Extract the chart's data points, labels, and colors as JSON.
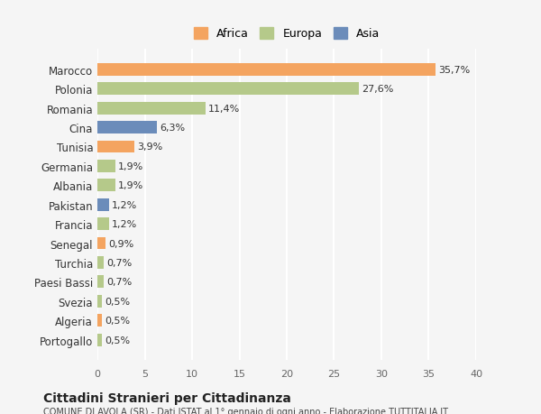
{
  "categories": [
    "Portogallo",
    "Algeria",
    "Svezia",
    "Paesi Bassi",
    "Turchia",
    "Senegal",
    "Francia",
    "Pakistan",
    "Albania",
    "Germania",
    "Tunisia",
    "Cina",
    "Romania",
    "Polonia",
    "Marocco"
  ],
  "values": [
    0.5,
    0.5,
    0.5,
    0.7,
    0.7,
    0.9,
    1.2,
    1.2,
    1.9,
    1.9,
    3.9,
    6.3,
    11.4,
    27.6,
    35.7
  ],
  "labels": [
    "0,5%",
    "0,5%",
    "0,5%",
    "0,7%",
    "0,7%",
    "0,9%",
    "1,2%",
    "1,2%",
    "1,9%",
    "1,9%",
    "3,9%",
    "6,3%",
    "11,4%",
    "27,6%",
    "35,7%"
  ],
  "colors": [
    "#b5c98a",
    "#f4a460",
    "#b5c98a",
    "#b5c98a",
    "#b5c98a",
    "#f4a460",
    "#b5c98a",
    "#6b8cba",
    "#b5c98a",
    "#b5c98a",
    "#f4a460",
    "#6b8cba",
    "#b5c98a",
    "#b5c98a",
    "#f4a460"
  ],
  "legend_labels": [
    "Africa",
    "Europa",
    "Asia"
  ],
  "legend_colors": [
    "#f4a460",
    "#b5c98a",
    "#6b8cba"
  ],
  "xlim": [
    0,
    40
  ],
  "xticks": [
    0,
    5,
    10,
    15,
    20,
    25,
    30,
    35,
    40
  ],
  "title": "Cittadini Stranieri per Cittadinanza",
  "subtitle": "COMUNE DI AVOLA (SR) - Dati ISTAT al 1° gennaio di ogni anno - Elaborazione TUTTITALIA.IT",
  "bg_color": "#f5f5f5",
  "grid_color": "#ffffff"
}
